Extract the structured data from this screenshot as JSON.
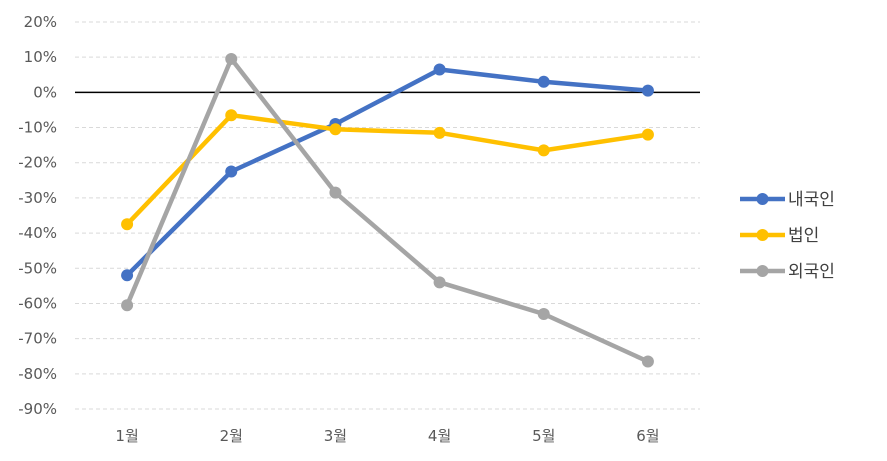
{
  "chart_data": {
    "type": "line",
    "categories": [
      "1월",
      "2월",
      "3월",
      "4월",
      "5월",
      "6월"
    ],
    "ylim": [
      -90,
      20
    ],
    "yticks": [
      20,
      10,
      0,
      -10,
      -20,
      -30,
      -40,
      -50,
      -60,
      -70,
      -80,
      -90
    ],
    "ytick_labels": [
      "20%",
      "10%",
      "0%",
      "-10%",
      "-20%",
      "-30%",
      "-40%",
      "-50%",
      "-60%",
      "-70%",
      "-80%",
      "-90%"
    ],
    "grid": "horizontal-dashed",
    "legend_position": "right",
    "series": [
      {
        "name": "내국인",
        "color": "#4472C4",
        "values": [
          -52,
          -22.5,
          -9,
          6.5,
          3,
          0.5
        ]
      },
      {
        "name": "법인",
        "color": "#FFC000",
        "values": [
          -37.5,
          -6.5,
          -10.5,
          -11.5,
          -16.5,
          -12
        ]
      },
      {
        "name": "외국인",
        "color": "#A5A5A5",
        "values": [
          -60.5,
          9.5,
          -28.5,
          -54,
          -63,
          -76.5
        ]
      }
    ]
  }
}
